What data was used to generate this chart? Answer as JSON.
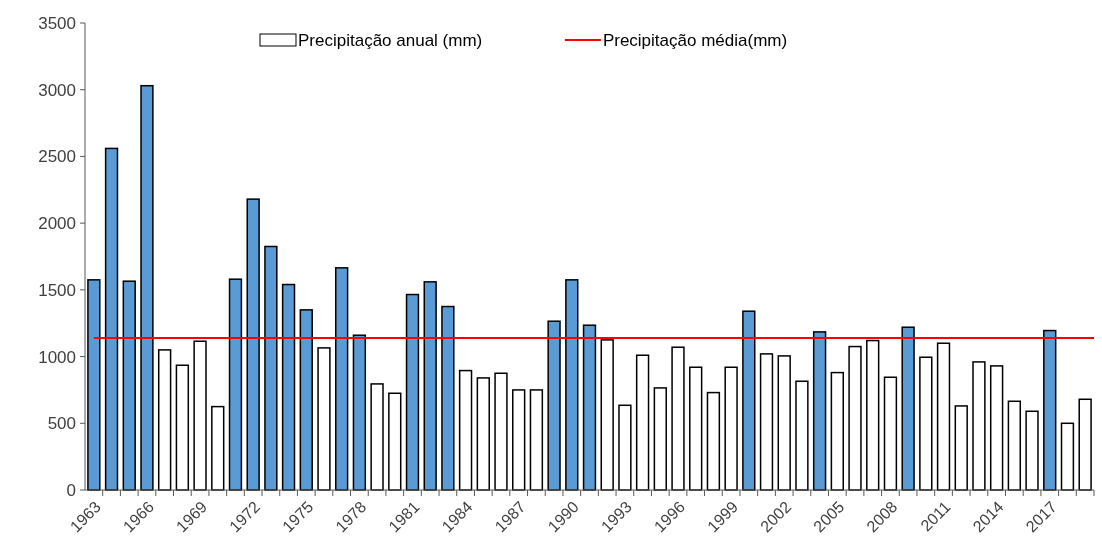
{
  "chart_data": {
    "type": "bar",
    "categories": [
      "1963",
      null,
      null,
      "1966",
      null,
      null,
      "1969",
      null,
      null,
      "1972",
      null,
      null,
      "1975",
      null,
      null,
      "1978",
      null,
      null,
      "1981",
      null,
      null,
      "1984",
      null,
      null,
      "1987",
      null,
      null,
      "1990",
      null,
      null,
      "1993",
      null,
      null,
      "1996",
      null,
      null,
      "1999",
      null,
      null,
      "2002",
      null,
      null,
      "2005",
      null,
      null,
      "2008",
      null,
      null,
      "2011",
      null,
      null,
      "2014",
      null,
      null,
      "2017",
      null,
      null
    ],
    "series": [
      {
        "name": "Precipitação anual (mm)",
        "color": "#ffffff",
        "values": [
          1575,
          2560,
          1565,
          3030,
          1050,
          935,
          1115,
          625,
          1580,
          2180,
          1825,
          1540,
          1350,
          1065,
          1665,
          1160,
          795,
          725,
          1465,
          1560,
          1375,
          895,
          840,
          875,
          750,
          750,
          1265,
          1575,
          1235,
          1125,
          635,
          1010,
          765,
          1070,
          920,
          730,
          920,
          1340,
          1020,
          1005,
          815,
          1185,
          880,
          1075,
          1120,
          845,
          1220,
          995,
          1100,
          630,
          960,
          930,
          665,
          590,
          1195,
          500,
          680
        ],
        "colors": [
          "#5b9bd5",
          "#5b9bd5",
          "#5b9bd5",
          "#5b9bd5",
          "#ffffff",
          "#ffffff",
          "#ffffff",
          "#ffffff",
          "#5b9bd5",
          "#5b9bd5",
          "#5b9bd5",
          "#5b9bd5",
          "#5b9bd5",
          "#ffffff",
          "#5b9bd5",
          "#5b9bd5",
          "#ffffff",
          "#ffffff",
          "#5b9bd5",
          "#5b9bd5",
          "#5b9bd5",
          "#ffffff",
          "#ffffff",
          "#ffffff",
          "#ffffff",
          "#ffffff",
          "#5b9bd5",
          "#5b9bd5",
          "#5b9bd5",
          "#ffffff",
          "#ffffff",
          "#ffffff",
          "#ffffff",
          "#ffffff",
          "#ffffff",
          "#ffffff",
          "#ffffff",
          "#5b9bd5",
          "#ffffff",
          "#ffffff",
          "#ffffff",
          "#5b9bd5",
          "#ffffff",
          "#ffffff",
          "#ffffff",
          "#ffffff",
          "#5b9bd5",
          "#ffffff",
          "#ffffff",
          "#ffffff",
          "#ffffff",
          "#ffffff",
          "#ffffff",
          "#ffffff",
          "#5b9bd5",
          "#ffffff",
          "#ffffff"
        ]
      }
    ],
    "ref_lines": [
      {
        "axis": "y",
        "value": 1140,
        "label": "Precipitação média(mm)",
        "color": "#ff0000"
      }
    ],
    "ylim": [
      0,
      3500
    ],
    "yticks": [
      0,
      500,
      1000,
      1500,
      2000,
      2500,
      3000,
      3500
    ],
    "grid": false,
    "legend": "top"
  }
}
